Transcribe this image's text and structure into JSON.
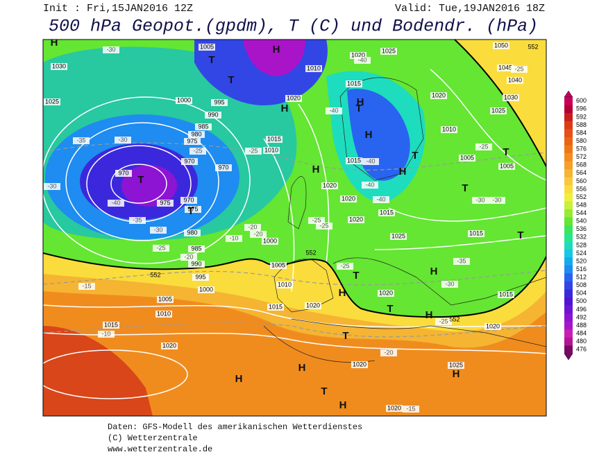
{
  "header": {
    "init": "Init : Fri,15JAN2016 12Z",
    "valid": "Valid: Tue,19JAN2016 18Z",
    "title": "500 hPa Geopot.(gpdm), T (C) und Bodendr. (hPa)"
  },
  "footer": {
    "line1": "Daten: GFS-Modell des amerikanischen Wetterdienstes",
    "line2": "(C) Wetterzentrale",
    "line3": "www.wetterzentrale.de"
  },
  "colorbar": {
    "levels": [
      "600",
      "596",
      "592",
      "588",
      "584",
      "580",
      "576",
      "572",
      "568",
      "564",
      "560",
      "556",
      "552",
      "548",
      "544",
      "540",
      "536",
      "532",
      "528",
      "524",
      "520",
      "516",
      "512",
      "508",
      "504",
      "500",
      "496",
      "492",
      "488",
      "484",
      "480",
      "476"
    ],
    "colors": [
      "#c8005a",
      "#b40032",
      "#c81e1e",
      "#dc3c14",
      "#e65014",
      "#eb6414",
      "#f07814",
      "#f58c1e",
      "#f5a028",
      "#f5b432",
      "#fac83c",
      "#fadc3c",
      "#f0f03c",
      "#c8f03c",
      "#96eb32",
      "#64e632",
      "#3ce65a",
      "#28e68c",
      "#1edcbe",
      "#14c8e6",
      "#14aaf0",
      "#1e8cf0",
      "#2864f0",
      "#3246e6",
      "#3c28dc",
      "#5014d2",
      "#6e14d2",
      "#8c14d2",
      "#aa14c8",
      "#c81eb4",
      "#b41496",
      "#780a64"
    ]
  },
  "map": {
    "pressure_labels": [
      "1005",
      "1030",
      "1025",
      "1020",
      "1025",
      "1050",
      "1045",
      "1040",
      "1030",
      "1025",
      "1020",
      "1010",
      "1015",
      "1010",
      "1020",
      "1000",
      "995",
      "990",
      "985",
      "980",
      "975",
      "970",
      "970",
      "970",
      "975",
      "970",
      "975",
      "980",
      "985",
      "990",
      "995",
      "1000",
      "1005",
      "1010",
      "1015",
      "1020",
      "1010",
      "1015",
      "1020",
      "1005",
      "1000",
      "1015",
      "1010",
      "1015",
      "1020",
      "1020",
      "1020",
      "1015",
      "1025",
      "1005",
      "1005",
      "1015",
      "1015",
      "1020",
      "1020",
      "1020",
      "1025",
      "1020"
    ],
    "temperature_labels": [
      "-30",
      "-30",
      "-35",
      "-30",
      "-40",
      "-35",
      "-30",
      "-25",
      "-20",
      "-15",
      "-10",
      "-25",
      "-25",
      "-20",
      "-20",
      "-10",
      "-25",
      "-25",
      "-25",
      "-40",
      "-40",
      "-40",
      "-40",
      "-35",
      "-30",
      "-30",
      "-30",
      "-25",
      "-20",
      "-15",
      "-25",
      "-25",
      "-40"
    ],
    "contour_labels": [
      "552",
      "552",
      "552",
      "552"
    ],
    "symbols": [
      "H",
      "H",
      "T",
      "T",
      "H",
      "H",
      "H",
      "T",
      "H",
      "H",
      "T",
      "T",
      "T",
      "T",
      "T",
      "T",
      "H",
      "H",
      "T",
      "T",
      "H",
      "T",
      "H",
      "H",
      "T",
      "H",
      "H"
    ]
  }
}
